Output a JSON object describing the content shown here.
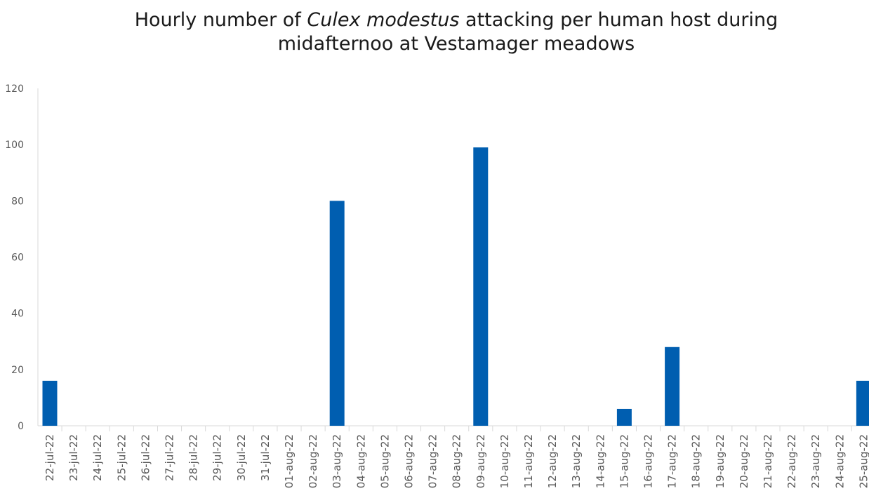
{
  "chart_data": {
    "type": "bar",
    "title_parts": [
      "Hourly number of ",
      "Culex modestus",
      " attacking per human host during",
      "midafternoo at Vestamager meadows"
    ],
    "categories": [
      "22-jul-22",
      "23-jul-22",
      "24-jul-22",
      "25-jul-22",
      "26-jul-22",
      "27-jul-22",
      "28-jul-22",
      "29-jul-22",
      "30-jul-22",
      "31-jul-22",
      "01-aug-22",
      "02-aug-22",
      "03-aug-22",
      "04-aug-22",
      "05-aug-22",
      "06-aug-22",
      "07-aug-22",
      "08-aug-22",
      "09-aug-22",
      "10-aug-22",
      "11-aug-22",
      "12-aug-22",
      "13-aug-22",
      "14-aug-22",
      "15-aug-22",
      "16-aug-22",
      "17-aug-22",
      "18-aug-22",
      "19-aug-22",
      "20-aug-22",
      "21-aug-22",
      "22-aug-22",
      "23-aug-22",
      "24-aug-22",
      "25-aug-22"
    ],
    "values": [
      16,
      0,
      0,
      0,
      0,
      0,
      0,
      0,
      0,
      0,
      0,
      0,
      80,
      0,
      0,
      0,
      0,
      0,
      99,
      0,
      0,
      0,
      0,
      0,
      6,
      0,
      28,
      0,
      0,
      0,
      0,
      0,
      0,
      0,
      16
    ],
    "yticks": [
      "0",
      "20",
      "40",
      "60",
      "80",
      "100",
      "120"
    ],
    "ylim": [
      0,
      120
    ],
    "bar_color": "#005eb0"
  }
}
